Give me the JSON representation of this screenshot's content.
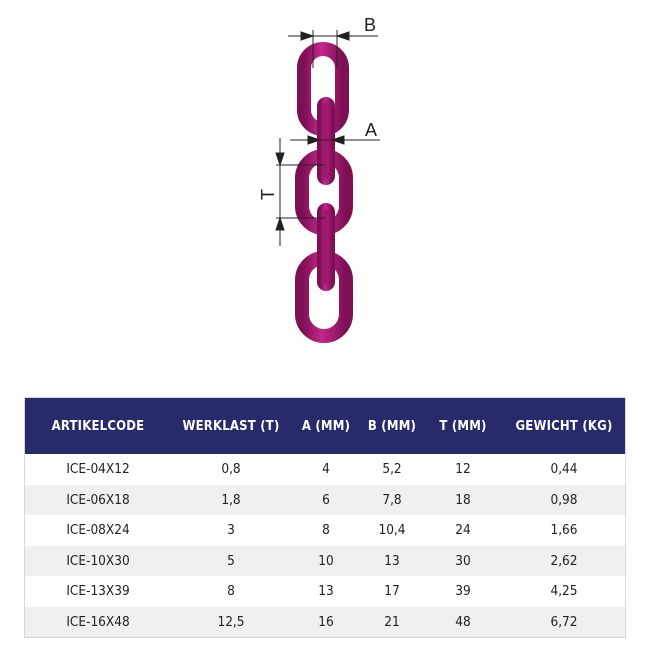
{
  "diagram": {
    "labels": {
      "b": "B",
      "a": "A",
      "t": "T"
    },
    "chain_color": "#a3186f"
  },
  "table": {
    "header_color": "#272b6b",
    "headers": [
      "ARTIKELCODE",
      "WERKLAST (T)",
      "A (MM)",
      "B (MM)",
      "T (MM)",
      "GEWICHT (KG)"
    ],
    "rows": [
      [
        "ICE-04X12",
        "0,8",
        "4",
        "5,2",
        "12",
        "0,44"
      ],
      [
        "ICE-06X18",
        "1,8",
        "6",
        "7,8",
        "18",
        "0,98"
      ],
      [
        "ICE-08X24",
        "3",
        "8",
        "10,4",
        "24",
        "1,66"
      ],
      [
        "ICE-10X30",
        "5",
        "10",
        "13",
        "30",
        "2,62"
      ],
      [
        "ICE-13X39",
        "8",
        "13",
        "17",
        "39",
        "4,25"
      ],
      [
        "ICE-16X48",
        "12,5",
        "16",
        "21",
        "48",
        "6,72"
      ]
    ]
  }
}
